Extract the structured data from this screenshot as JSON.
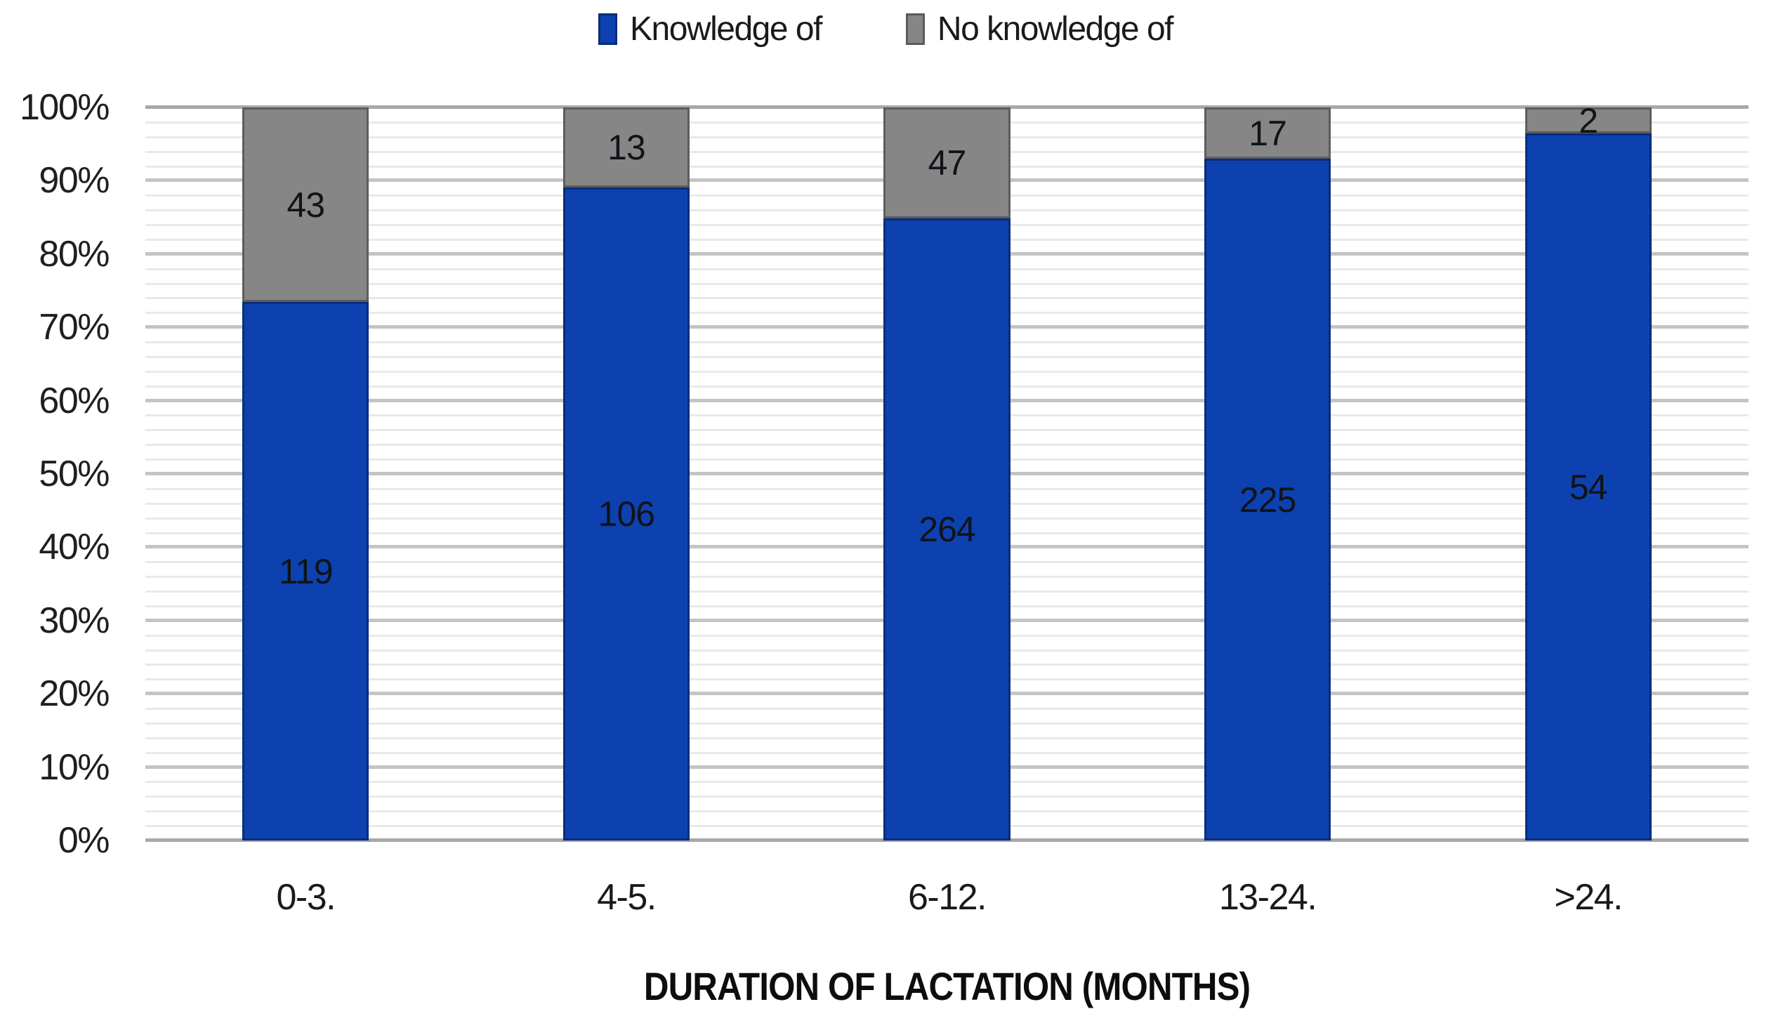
{
  "chart_data": {
    "type": "bar",
    "variant": "stacked-100-percent",
    "title": "",
    "xlabel": "DURATION OF LACTATION (MONTHS)",
    "ylabel": "",
    "categories": [
      "0-3.",
      "4-5.",
      "6-12.",
      "13-24.",
      ">24."
    ],
    "series": [
      {
        "name": "Knowledge of",
        "color": "#0d41b0",
        "values": [
          119,
          106,
          264,
          225,
          54
        ]
      },
      {
        "name": "No knowledge of",
        "color": "#868686",
        "values": [
          43,
          13,
          47,
          17,
          2
        ]
      }
    ],
    "y_ticks": [
      "0%",
      "10%",
      "20%",
      "30%",
      "40%",
      "50%",
      "60%",
      "70%",
      "80%",
      "90%",
      "100%"
    ],
    "ylim": [
      0,
      100
    ],
    "grid": {
      "on": true,
      "major_step": 10,
      "minor_step": 2
    },
    "legend_position": "top",
    "bar_label_color": "#101418"
  }
}
